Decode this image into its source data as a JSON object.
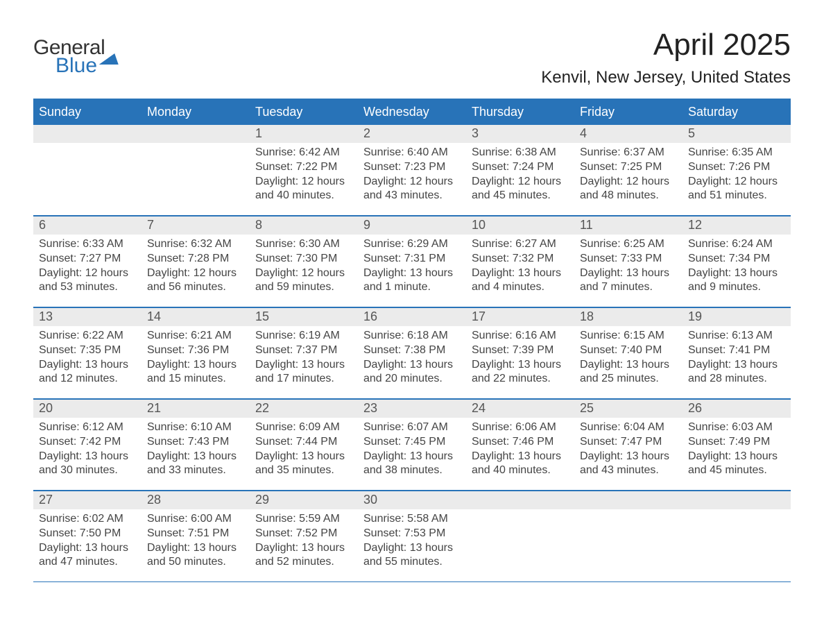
{
  "logo": {
    "line1": "General",
    "line2": "Blue"
  },
  "title": "April 2025",
  "location": "Kenvil, New Jersey, United States",
  "colors": {
    "brand": "#2873b8",
    "header_bg": "#2873b8",
    "header_text": "#ffffff",
    "daynum_bg": "#ebebeb",
    "text": "#333333",
    "body_bg": "#ffffff"
  },
  "fonts": {
    "family": "Arial",
    "title_pt": 44,
    "location_pt": 24,
    "header_pt": 18,
    "body_pt": 16
  },
  "layout": {
    "weeks": 5,
    "cols": 7
  },
  "weekdays": [
    "Sunday",
    "Monday",
    "Tuesday",
    "Wednesday",
    "Thursday",
    "Friday",
    "Saturday"
  ],
  "labels": {
    "sunrise": "Sunrise:",
    "sunset": "Sunset:",
    "daylight": "Daylight:"
  },
  "days": [
    {
      "n": "",
      "empty": true
    },
    {
      "n": "",
      "empty": true
    },
    {
      "n": "1",
      "sunrise": "6:42 AM",
      "sunset": "7:22 PM",
      "daylight": "12 hours and 40 minutes."
    },
    {
      "n": "2",
      "sunrise": "6:40 AM",
      "sunset": "7:23 PM",
      "daylight": "12 hours and 43 minutes."
    },
    {
      "n": "3",
      "sunrise": "6:38 AM",
      "sunset": "7:24 PM",
      "daylight": "12 hours and 45 minutes."
    },
    {
      "n": "4",
      "sunrise": "6:37 AM",
      "sunset": "7:25 PM",
      "daylight": "12 hours and 48 minutes."
    },
    {
      "n": "5",
      "sunrise": "6:35 AM",
      "sunset": "7:26 PM",
      "daylight": "12 hours and 51 minutes."
    },
    {
      "n": "6",
      "sunrise": "6:33 AM",
      "sunset": "7:27 PM",
      "daylight": "12 hours and 53 minutes."
    },
    {
      "n": "7",
      "sunrise": "6:32 AM",
      "sunset": "7:28 PM",
      "daylight": "12 hours and 56 minutes."
    },
    {
      "n": "8",
      "sunrise": "6:30 AM",
      "sunset": "7:30 PM",
      "daylight": "12 hours and 59 minutes."
    },
    {
      "n": "9",
      "sunrise": "6:29 AM",
      "sunset": "7:31 PM",
      "daylight": "13 hours and 1 minute."
    },
    {
      "n": "10",
      "sunrise": "6:27 AM",
      "sunset": "7:32 PM",
      "daylight": "13 hours and 4 minutes."
    },
    {
      "n": "11",
      "sunrise": "6:25 AM",
      "sunset": "7:33 PM",
      "daylight": "13 hours and 7 minutes."
    },
    {
      "n": "12",
      "sunrise": "6:24 AM",
      "sunset": "7:34 PM",
      "daylight": "13 hours and 9 minutes."
    },
    {
      "n": "13",
      "sunrise": "6:22 AM",
      "sunset": "7:35 PM",
      "daylight": "13 hours and 12 minutes."
    },
    {
      "n": "14",
      "sunrise": "6:21 AM",
      "sunset": "7:36 PM",
      "daylight": "13 hours and 15 minutes."
    },
    {
      "n": "15",
      "sunrise": "6:19 AM",
      "sunset": "7:37 PM",
      "daylight": "13 hours and 17 minutes."
    },
    {
      "n": "16",
      "sunrise": "6:18 AM",
      "sunset": "7:38 PM",
      "daylight": "13 hours and 20 minutes."
    },
    {
      "n": "17",
      "sunrise": "6:16 AM",
      "sunset": "7:39 PM",
      "daylight": "13 hours and 22 minutes."
    },
    {
      "n": "18",
      "sunrise": "6:15 AM",
      "sunset": "7:40 PM",
      "daylight": "13 hours and 25 minutes."
    },
    {
      "n": "19",
      "sunrise": "6:13 AM",
      "sunset": "7:41 PM",
      "daylight": "13 hours and 28 minutes."
    },
    {
      "n": "20",
      "sunrise": "6:12 AM",
      "sunset": "7:42 PM",
      "daylight": "13 hours and 30 minutes."
    },
    {
      "n": "21",
      "sunrise": "6:10 AM",
      "sunset": "7:43 PM",
      "daylight": "13 hours and 33 minutes."
    },
    {
      "n": "22",
      "sunrise": "6:09 AM",
      "sunset": "7:44 PM",
      "daylight": "13 hours and 35 minutes."
    },
    {
      "n": "23",
      "sunrise": "6:07 AM",
      "sunset": "7:45 PM",
      "daylight": "13 hours and 38 minutes."
    },
    {
      "n": "24",
      "sunrise": "6:06 AM",
      "sunset": "7:46 PM",
      "daylight": "13 hours and 40 minutes."
    },
    {
      "n": "25",
      "sunrise": "6:04 AM",
      "sunset": "7:47 PM",
      "daylight": "13 hours and 43 minutes."
    },
    {
      "n": "26",
      "sunrise": "6:03 AM",
      "sunset": "7:49 PM",
      "daylight": "13 hours and 45 minutes."
    },
    {
      "n": "27",
      "sunrise": "6:02 AM",
      "sunset": "7:50 PM",
      "daylight": "13 hours and 47 minutes."
    },
    {
      "n": "28",
      "sunrise": "6:00 AM",
      "sunset": "7:51 PM",
      "daylight": "13 hours and 50 minutes."
    },
    {
      "n": "29",
      "sunrise": "5:59 AM",
      "sunset": "7:52 PM",
      "daylight": "13 hours and 52 minutes."
    },
    {
      "n": "30",
      "sunrise": "5:58 AM",
      "sunset": "7:53 PM",
      "daylight": "13 hours and 55 minutes."
    },
    {
      "n": "",
      "empty": true
    },
    {
      "n": "",
      "empty": true
    },
    {
      "n": "",
      "empty": true
    }
  ]
}
